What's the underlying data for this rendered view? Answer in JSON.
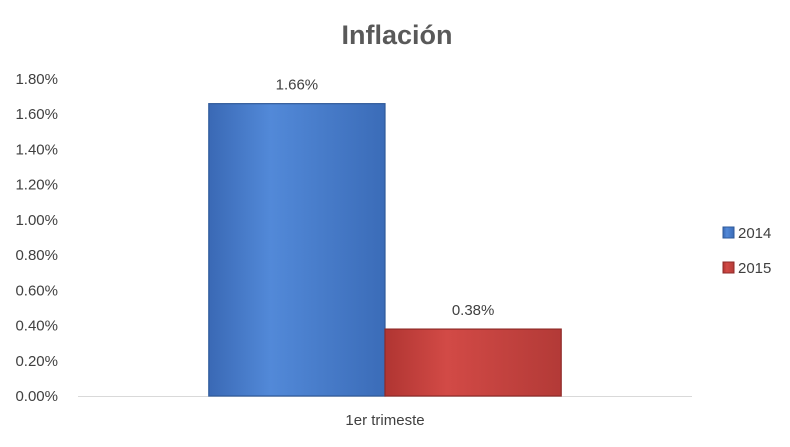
{
  "chart_data": {
    "type": "bar",
    "title": "Inflación",
    "categories": [
      "1er trimeste"
    ],
    "series": [
      {
        "name": "2014",
        "values": [
          1.66
        ],
        "color": "#4a7bc8",
        "edge": "#2f5a9a"
      },
      {
        "name": "2015",
        "values": [
          0.38
        ],
        "color": "#c0403d",
        "edge": "#8f2a28"
      }
    ],
    "data_labels": [
      "1.66%",
      "0.38%"
    ],
    "y_ticks": [
      "0.00%",
      "0.20%",
      "0.40%",
      "0.60%",
      "0.80%",
      "1.00%",
      "1.20%",
      "1.40%",
      "1.60%",
      "1.80%"
    ],
    "ylim": [
      0,
      1.8
    ],
    "y_unit": "%",
    "grid": false,
    "legend_position": "right"
  }
}
